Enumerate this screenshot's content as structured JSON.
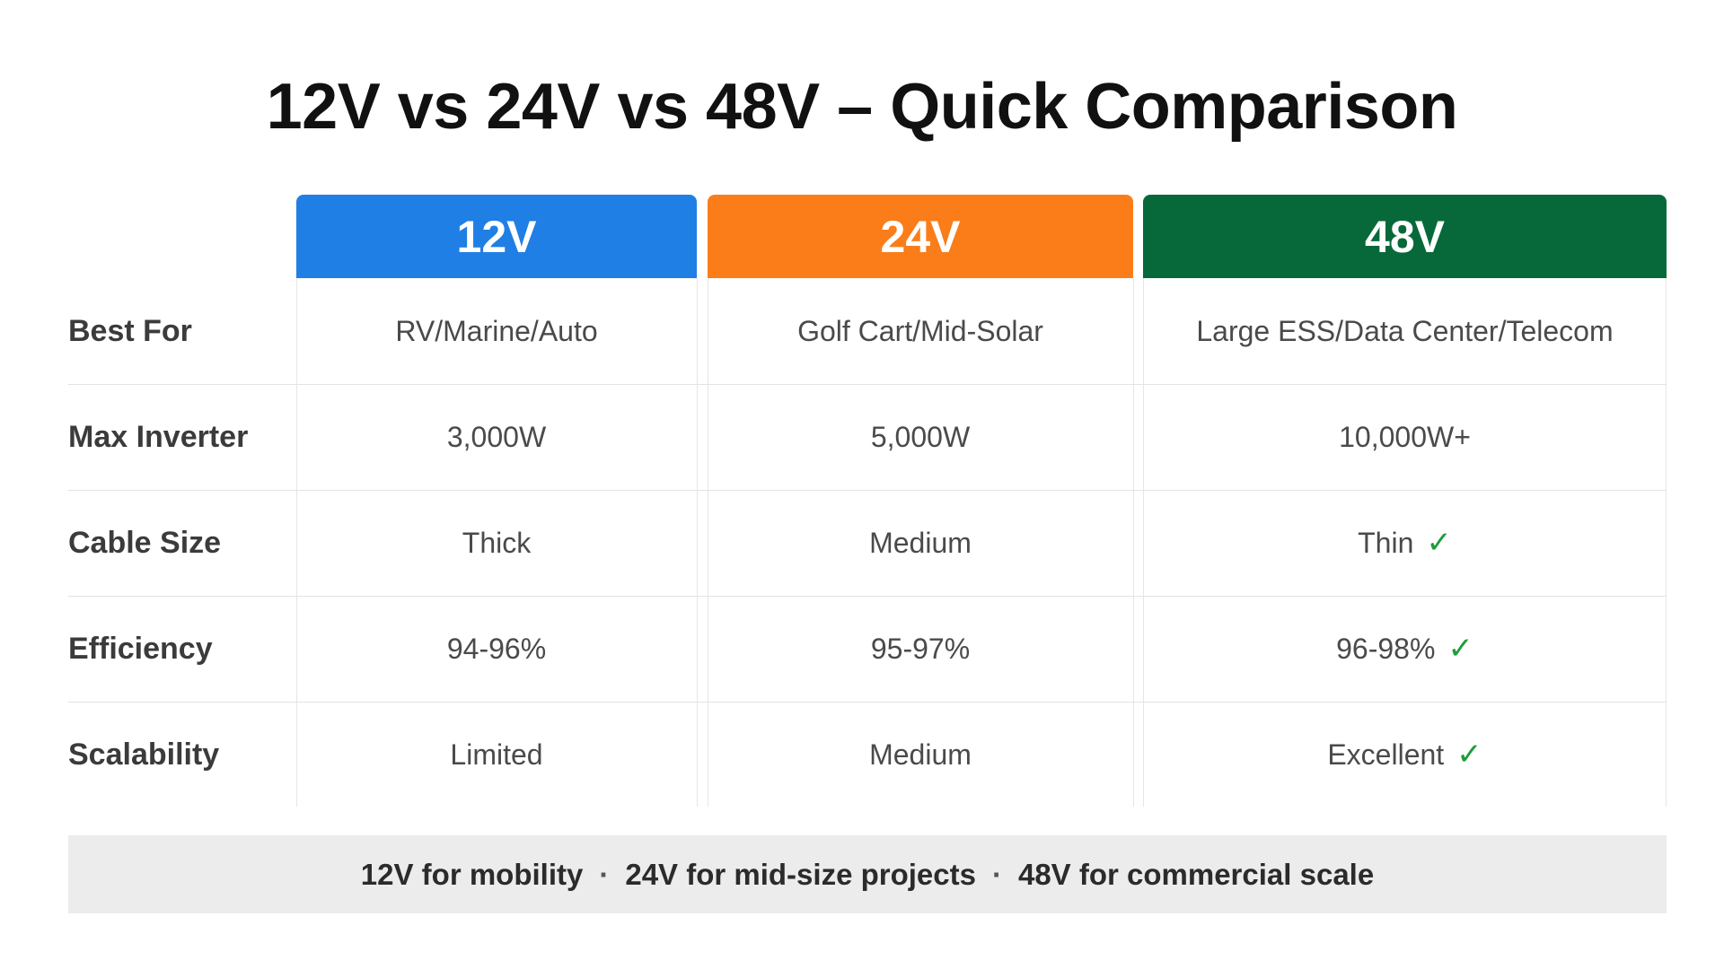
{
  "title": "12V vs 24V vs 48V – Quick Comparison",
  "columns": [
    {
      "label": "12V",
      "color": "#1f7fe5"
    },
    {
      "label": "24V",
      "color": "#fa7d19"
    },
    {
      "label": "48V",
      "color": "#076939"
    }
  ],
  "rows": [
    {
      "label": "Best For",
      "values": [
        "RV/Marine/Auto",
        "Golf Cart/Mid-Solar",
        "Large ESS/Data Center/Telecom"
      ],
      "checks": [
        false,
        false,
        false
      ]
    },
    {
      "label": "Max Inverter",
      "values": [
        "3,000W",
        "5,000W",
        "10,000W+"
      ],
      "checks": [
        false,
        false,
        false
      ]
    },
    {
      "label": "Cable Size",
      "values": [
        "Thick",
        "Medium",
        "Thin"
      ],
      "checks": [
        false,
        false,
        true
      ]
    },
    {
      "label": "Efficiency",
      "values": [
        "94-96%",
        "95-97%",
        "96-98%"
      ],
      "checks": [
        false,
        false,
        true
      ]
    },
    {
      "label": "Scalability",
      "values": [
        "Limited",
        "Medium",
        "Excellent"
      ],
      "checks": [
        false,
        false,
        true
      ]
    }
  ],
  "check_symbol": "✓",
  "check_color": "#1f9d3a",
  "footer": {
    "items": [
      "12V for mobility",
      "24V for mid-size projects",
      "48V for commercial scale"
    ],
    "separator": "·"
  }
}
